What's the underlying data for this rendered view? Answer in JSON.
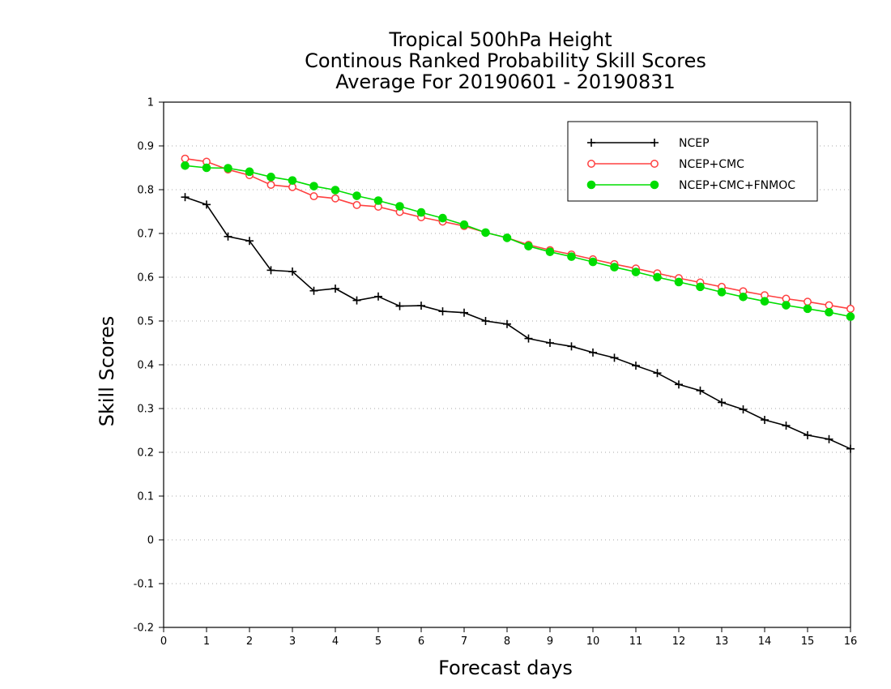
{
  "chart_data": {
    "type": "line",
    "title": "Tropical 500hPa Height",
    "subtitle": "Continous Ranked Probability Skill Scores",
    "subtitle2": "Average For 20190601 - 20190831",
    "xlabel": "Forecast days",
    "ylabel": "Skill Scores",
    "xlim": [
      0,
      16
    ],
    "ylim": [
      -0.2,
      1
    ],
    "x_ticks": [
      "0",
      "1",
      "2",
      "3",
      "4",
      "5",
      "6",
      "7",
      "8",
      "9",
      "10",
      "11",
      "12",
      "13",
      "14",
      "15",
      "16"
    ],
    "y_ticks": [
      "-0.2",
      "-0.1",
      "0",
      "0.1",
      "0.2",
      "0.3",
      "0.4",
      "0.5",
      "0.6",
      "0.7",
      "0.8",
      "0.9",
      "1"
    ],
    "grid": true,
    "legend_position": "top-right",
    "x": [
      0.5,
      1,
      1.5,
      2,
      2.5,
      3,
      3.5,
      4,
      4.5,
      5,
      5.5,
      6,
      6.5,
      7,
      7.5,
      8,
      8.5,
      9,
      9.5,
      10,
      10.5,
      11,
      11.5,
      12,
      12.5,
      13,
      13.5,
      14,
      14.5,
      15,
      15.5,
      16
    ],
    "series": [
      {
        "name": "NCEP",
        "color": "#000000",
        "marker": "plus",
        "values": [
          0.783,
          0.766,
          0.693,
          0.683,
          0.616,
          0.613,
          0.569,
          0.574,
          0.547,
          0.556,
          0.534,
          0.535,
          0.522,
          0.519,
          0.5,
          0.493,
          0.46,
          0.45,
          0.442,
          0.428,
          0.416,
          0.398,
          0.381,
          0.355,
          0.341,
          0.314,
          0.298,
          0.274,
          0.261,
          0.239,
          0.23,
          0.208
        ]
      },
      {
        "name": "NCEP+CMC",
        "color": "#ff4040",
        "marker": "open-circle",
        "values": [
          0.871,
          0.864,
          0.846,
          0.833,
          0.811,
          0.806,
          0.785,
          0.78,
          0.765,
          0.761,
          0.749,
          0.737,
          0.727,
          0.717,
          0.702,
          0.69,
          0.674,
          0.662,
          0.652,
          0.641,
          0.63,
          0.62,
          0.609,
          0.598,
          0.588,
          0.578,
          0.568,
          0.559,
          0.551,
          0.544,
          0.536,
          0.528
        ]
      },
      {
        "name": "NCEP+CMC+FNMOC",
        "color": "#00dd00",
        "marker": "filled-circle",
        "values": [
          0.855,
          0.85,
          0.849,
          0.841,
          0.829,
          0.821,
          0.808,
          0.799,
          0.786,
          0.775,
          0.762,
          0.748,
          0.735,
          0.72,
          0.702,
          0.69,
          0.671,
          0.658,
          0.647,
          0.635,
          0.623,
          0.612,
          0.6,
          0.589,
          0.578,
          0.566,
          0.555,
          0.545,
          0.536,
          0.528,
          0.52,
          0.51
        ]
      }
    ]
  }
}
